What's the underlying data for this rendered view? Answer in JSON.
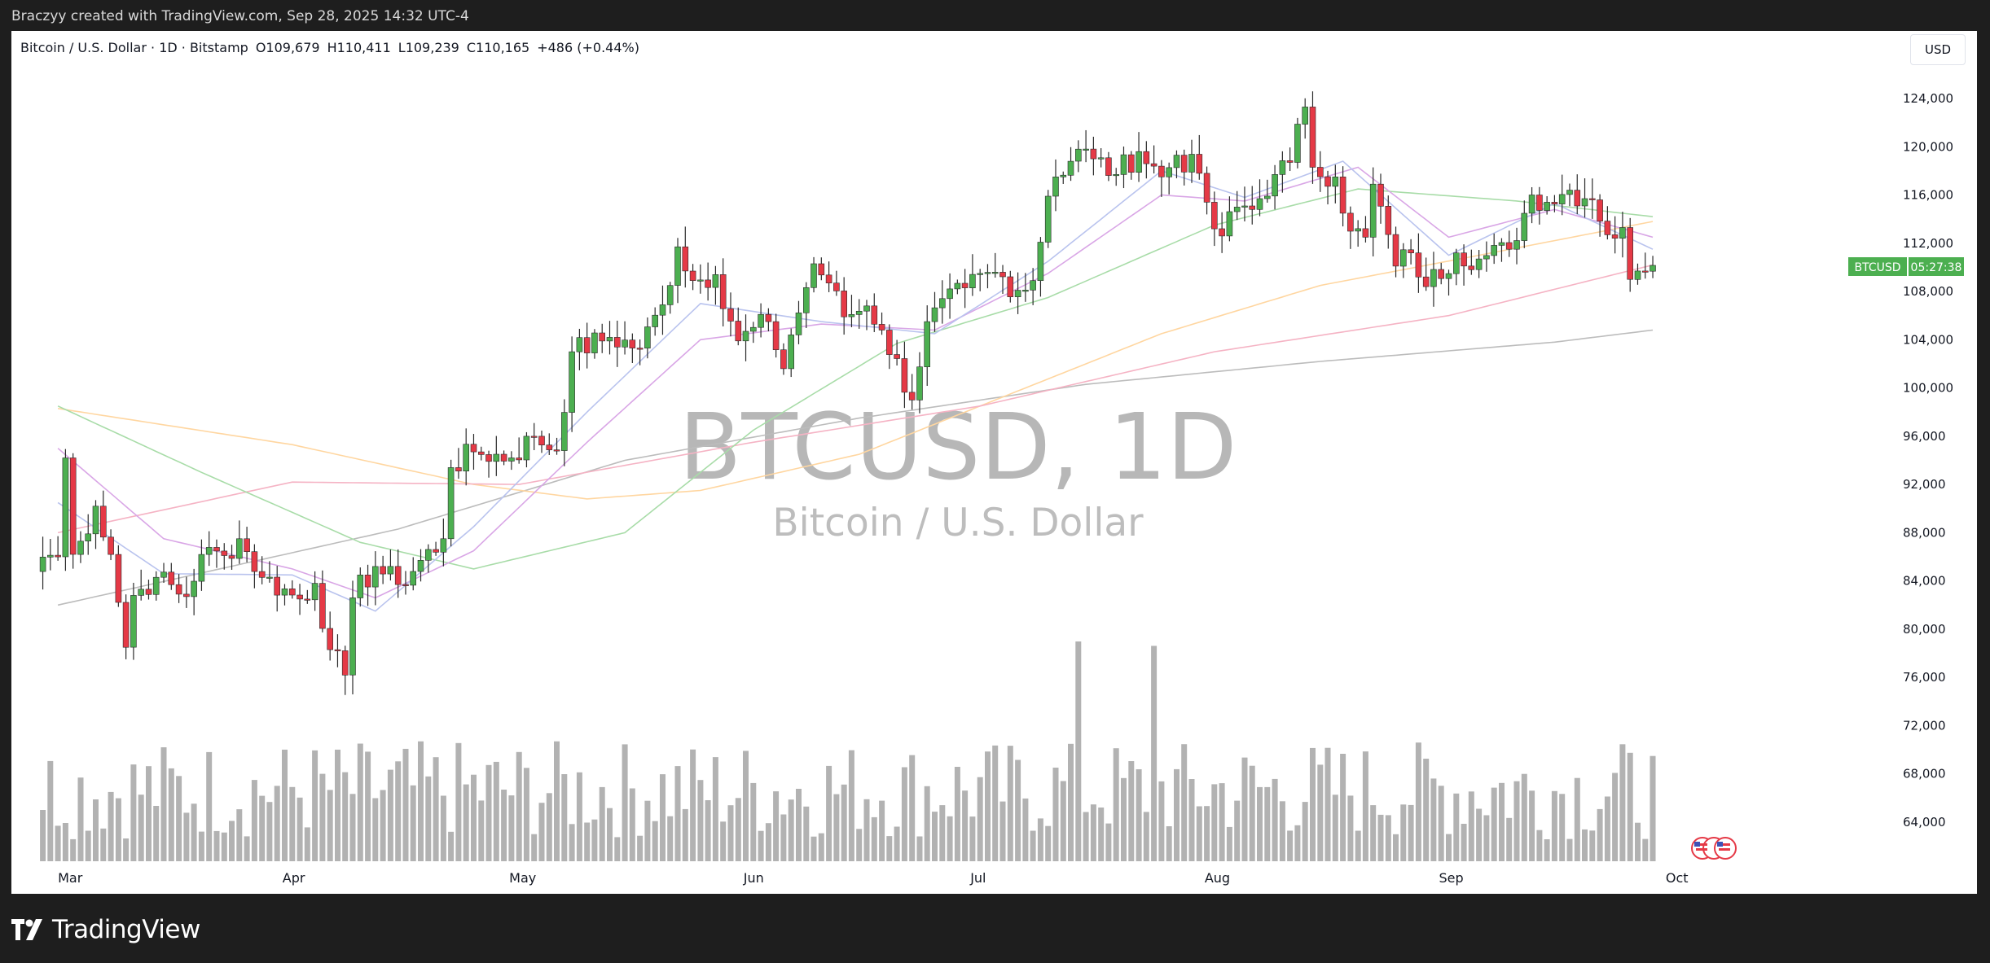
{
  "header": {
    "attribution": "Braczyy created with TradingView.com, Sep 28, 2025 14:32 UTC-4"
  },
  "legend": {
    "symbol_line": "Bitcoin / U.S. Dollar · 1D · Bitstamp",
    "open": "O109,679",
    "high": "H110,411",
    "low": "L109,239",
    "close": "C110,165",
    "change": "+486 (+0.44%)"
  },
  "currency_label": "USD",
  "watermark": {
    "symbol": "BTCUSD, 1D",
    "name": "Bitcoin / U.S. Dollar"
  },
  "price_tag": {
    "symbol": "BTCUSD",
    "countdown": "05:27:38",
    "color": "#4caf50"
  },
  "footer": {
    "brand": "TradingView"
  },
  "colors": {
    "up": "#4caf50",
    "down": "#e53946",
    "volume": "#b2b2b2",
    "frame_bg": "#ffffff",
    "page_bg": "#1e1e1e"
  },
  "chart_data": {
    "type": "candlestick",
    "interval": "1D",
    "x_tick_labels": [
      "Mar",
      "Apr",
      "May",
      "Jun",
      "Jul",
      "Aug",
      "Sep",
      "Oct"
    ],
    "x_tick_dates": [
      "2025-03-01",
      "2025-04-01",
      "2025-05-01",
      "2025-06-01",
      "2025-07-01",
      "2025-08-01",
      "2025-09-01",
      "2025-10-01"
    ],
    "y_ticks": [
      64000,
      68000,
      72000,
      76000,
      80000,
      84000,
      88000,
      92000,
      96000,
      100000,
      104000,
      108000,
      112000,
      116000,
      120000,
      124000
    ],
    "ylim": [
      60000,
      128000
    ],
    "y_tick_labels": [
      "64,000",
      "68,000",
      "72,000",
      "76,000",
      "80,000",
      "84,000",
      "88,000",
      "92,000",
      "96,000",
      "100,000",
      "104,000",
      "108,000",
      "112,000",
      "116,000",
      "120,000",
      "124,000"
    ],
    "last_price": 110165,
    "close_anchors": [
      [
        "2025-03-01",
        86000
      ],
      [
        "2025-03-02",
        94200
      ],
      [
        "2025-03-03",
        86200
      ],
      [
        "2025-03-04",
        87300
      ],
      [
        "2025-03-06",
        90200
      ],
      [
        "2025-03-08",
        86200
      ],
      [
        "2025-03-10",
        78500
      ],
      [
        "2025-03-11",
        82800
      ],
      [
        "2025-03-14",
        84300
      ],
      [
        "2025-03-18",
        82700
      ],
      [
        "2025-03-20",
        86200
      ],
      [
        "2025-03-23",
        86100
      ],
      [
        "2025-03-25",
        87500
      ],
      [
        "2025-03-28",
        84300
      ],
      [
        "2025-04-02",
        82500
      ],
      [
        "2025-04-04",
        83800
      ],
      [
        "2025-04-06",
        78300
      ],
      [
        "2025-04-08",
        76200
      ],
      [
        "2025-04-09",
        82600
      ],
      [
        "2025-04-12",
        85200
      ],
      [
        "2025-04-15",
        83700
      ],
      [
        "2025-04-21",
        87500
      ],
      [
        "2025-04-22",
        93400
      ],
      [
        "2025-04-25",
        94700
      ],
      [
        "2025-04-30",
        94200
      ],
      [
        "2025-05-03",
        96000
      ],
      [
        "2025-05-06",
        94800
      ],
      [
        "2025-05-08",
        103000
      ],
      [
        "2025-05-13",
        104200
      ],
      [
        "2025-05-17",
        103300
      ],
      [
        "2025-05-20",
        106900
      ],
      [
        "2025-05-22",
        111700
      ],
      [
        "2025-05-24",
        108900
      ],
      [
        "2025-05-27",
        109400
      ],
      [
        "2025-05-30",
        103900
      ],
      [
        "2025-06-03",
        105500
      ],
      [
        "2025-06-05",
        101600
      ],
      [
        "2025-06-06",
        104400
      ],
      [
        "2025-06-09",
        110300
      ],
      [
        "2025-06-11",
        108700
      ],
      [
        "2025-06-13",
        105900
      ],
      [
        "2025-06-16",
        106800
      ],
      [
        "2025-06-18",
        104800
      ],
      [
        "2025-06-22",
        99000
      ],
      [
        "2025-06-24",
        105500
      ],
      [
        "2025-06-29",
        108300
      ],
      [
        "2025-07-03",
        109600
      ],
      [
        "2025-07-06",
        108100
      ],
      [
        "2025-07-08",
        108900
      ],
      [
        "2025-07-10",
        115900
      ],
      [
        "2025-07-11",
        117500
      ],
      [
        "2025-07-14",
        119800
      ],
      [
        "2025-07-16",
        119000
      ],
      [
        "2025-07-19",
        117700
      ],
      [
        "2025-07-22",
        119600
      ],
      [
        "2025-07-25",
        117500
      ],
      [
        "2025-07-27",
        119300
      ],
      [
        "2025-07-30",
        117800
      ],
      [
        "2025-08-01",
        113200
      ],
      [
        "2025-08-02",
        112600
      ],
      [
        "2025-08-04",
        115000
      ],
      [
        "2025-08-06",
        114800
      ],
      [
        "2025-08-09",
        117700
      ],
      [
        "2025-08-11",
        118700
      ],
      [
        "2025-08-13",
        123300
      ],
      [
        "2025-08-14",
        118300
      ],
      [
        "2025-08-17",
        117500
      ],
      [
        "2025-08-19",
        113000
      ],
      [
        "2025-08-21",
        112500
      ],
      [
        "2025-08-22",
        116900
      ],
      [
        "2025-08-25",
        110100
      ],
      [
        "2025-08-27",
        111200
      ],
      [
        "2025-08-29",
        108400
      ],
      [
        "2025-09-02",
        111200
      ],
      [
        "2025-09-05",
        110700
      ],
      [
        "2025-09-09",
        111500
      ],
      [
        "2025-09-12",
        116000
      ],
      [
        "2025-09-14",
        115400
      ],
      [
        "2025-09-17",
        116400
      ],
      [
        "2025-09-19",
        115700
      ],
      [
        "2025-09-20",
        115600
      ],
      [
        "2025-09-22",
        112700
      ],
      [
        "2025-09-24",
        113300
      ],
      [
        "2025-09-25",
        109000
      ],
      [
        "2025-09-26",
        109700
      ],
      [
        "2025-09-27",
        109679
      ],
      [
        "2025-09-28",
        110165
      ]
    ],
    "moving_averages": [
      {
        "color": "#bcbcbc",
        "values": [
          [
            "2025-03-01",
            82000
          ],
          [
            "2025-04-15",
            88300
          ],
          [
            "2025-05-15",
            94000
          ],
          [
            "2025-06-15",
            97500
          ],
          [
            "2025-07-15",
            100300
          ],
          [
            "2025-08-15",
            102200
          ],
          [
            "2025-09-15",
            103800
          ],
          [
            "2025-09-28",
            104800
          ]
        ]
      },
      {
        "color": "#ffd6a0",
        "values": [
          [
            "2025-03-01",
            98300
          ],
          [
            "2025-04-01",
            95300
          ],
          [
            "2025-04-25",
            92000
          ],
          [
            "2025-05-10",
            90800
          ],
          [
            "2025-05-25",
            91500
          ],
          [
            "2025-06-15",
            94500
          ],
          [
            "2025-07-05",
            99500
          ],
          [
            "2025-07-25",
            104500
          ],
          [
            "2025-08-15",
            108500
          ],
          [
            "2025-09-05",
            111000
          ],
          [
            "2025-09-28",
            113800
          ]
        ]
      },
      {
        "color": "#f5b3c4",
        "values": [
          [
            "2025-03-01",
            88000
          ],
          [
            "2025-04-01",
            92200
          ],
          [
            "2025-05-01",
            92000
          ],
          [
            "2025-06-01",
            95500
          ],
          [
            "2025-07-01",
            98500
          ],
          [
            "2025-08-01",
            103000
          ],
          [
            "2025-09-01",
            106000
          ],
          [
            "2025-09-28",
            110200
          ]
        ]
      },
      {
        "color": "#a8dca8",
        "values": [
          [
            "2025-03-01",
            98500
          ],
          [
            "2025-03-20",
            93000
          ],
          [
            "2025-04-10",
            87200
          ],
          [
            "2025-04-25",
            85000
          ],
          [
            "2025-05-15",
            88000
          ],
          [
            "2025-06-01",
            96500
          ],
          [
            "2025-06-20",
            103700
          ],
          [
            "2025-07-10",
            107500
          ],
          [
            "2025-08-01",
            113500
          ],
          [
            "2025-08-20",
            116500
          ],
          [
            "2025-09-10",
            115500
          ],
          [
            "2025-09-28",
            114200
          ]
        ]
      },
      {
        "color": "#d9a6e6",
        "values": [
          [
            "2025-03-01",
            95000
          ],
          [
            "2025-03-15",
            87500
          ],
          [
            "2025-04-01",
            85000
          ],
          [
            "2025-04-12",
            82600
          ],
          [
            "2025-04-25",
            86500
          ],
          [
            "2025-05-10",
            95500
          ],
          [
            "2025-05-25",
            104000
          ],
          [
            "2025-06-10",
            105300
          ],
          [
            "2025-06-25",
            104800
          ],
          [
            "2025-07-10",
            109500
          ],
          [
            "2025-07-25",
            116000
          ],
          [
            "2025-08-05",
            115500
          ],
          [
            "2025-08-20",
            118300
          ],
          [
            "2025-09-01",
            112500
          ],
          [
            "2025-09-15",
            114800
          ],
          [
            "2025-09-28",
            112500
          ]
        ]
      },
      {
        "color": "#b9c3ee",
        "values": [
          [
            "2025-03-01",
            90500
          ],
          [
            "2025-03-15",
            84600
          ],
          [
            "2025-04-01",
            84500
          ],
          [
            "2025-04-12",
            81500
          ],
          [
            "2025-04-25",
            88500
          ],
          [
            "2025-05-10",
            98000
          ],
          [
            "2025-05-25",
            107000
          ],
          [
            "2025-06-10",
            105500
          ],
          [
            "2025-06-25",
            104500
          ],
          [
            "2025-07-10",
            110500
          ],
          [
            "2025-07-25",
            118000
          ],
          [
            "2025-08-05",
            115800
          ],
          [
            "2025-08-18",
            118800
          ],
          [
            "2025-09-01",
            111000
          ],
          [
            "2025-09-15",
            115300
          ],
          [
            "2025-09-28",
            111500
          ]
        ]
      }
    ],
    "volume": {
      "spikes": [
        [
          "2025-07-14",
          1.0
        ],
        [
          "2025-07-24",
          0.98
        ]
      ],
      "typical_range": [
        0.1,
        0.55
      ]
    }
  }
}
